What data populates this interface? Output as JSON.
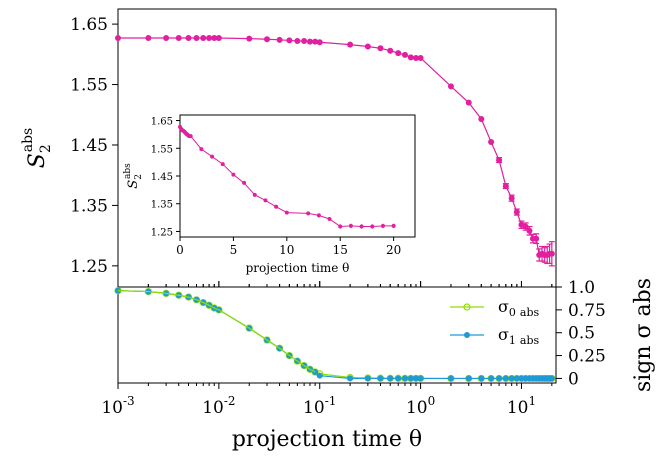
{
  "chart_data": [
    {
      "type": "line",
      "id": "main",
      "x_scale": "log",
      "xlim": [
        0.001,
        22
      ],
      "ylim": [
        1.215,
        1.675
      ],
      "y_ticks": [
        1.25,
        1.35,
        1.45,
        1.55,
        1.65
      ],
      "y_tick_labels": [
        "1.25",
        "1.35",
        "1.45",
        "1.55",
        "1.65"
      ],
      "ylabel": "S",
      "ylabel_sub": "2",
      "ylabel_sup": "abs",
      "color": "#e0209f",
      "series": [
        {
          "x": [
            0.001,
            0.002,
            0.003,
            0.004,
            0.005,
            0.006,
            0.007,
            0.008,
            0.009,
            0.01,
            0.02,
            0.03,
            0.04,
            0.05,
            0.06,
            0.07,
            0.08,
            0.09,
            0.1,
            0.2,
            0.3,
            0.4,
            0.5,
            0.6,
            0.7,
            0.8,
            0.9,
            1.0,
            2,
            3,
            4,
            5,
            6,
            7,
            8,
            9,
            10,
            11,
            12,
            13,
            14,
            15,
            16,
            17,
            18,
            19,
            20
          ],
          "y": [
            1.627,
            1.627,
            1.627,
            1.627,
            1.627,
            1.627,
            1.627,
            1.627,
            1.627,
            1.627,
            1.626,
            1.625,
            1.624,
            1.623,
            1.622,
            1.622,
            1.621,
            1.621,
            1.62,
            1.616,
            1.613,
            1.61,
            1.606,
            1.602,
            1.599,
            1.595,
            1.594,
            1.594,
            1.547,
            1.52,
            1.493,
            1.455,
            1.425,
            1.382,
            1.362,
            1.339,
            1.318,
            1.315,
            1.308,
            1.295,
            1.295,
            1.268,
            1.27,
            1.268,
            1.268,
            1.27,
            1.27
          ],
          "err": [
            0.001,
            0.001,
            0.001,
            0.001,
            0.001,
            0.001,
            0.001,
            0.001,
            0.001,
            0.001,
            0.001,
            0.001,
            0.001,
            0.001,
            0.001,
            0.001,
            0.001,
            0.001,
            0.001,
            0.001,
            0.001,
            0.001,
            0.001,
            0.001,
            0.001,
            0.001,
            0.001,
            0.001,
            0.002,
            0.002,
            0.003,
            0.003,
            0.004,
            0.004,
            0.005,
            0.005,
            0.006,
            0.006,
            0.007,
            0.007,
            0.008,
            0.01,
            0.012,
            0.012,
            0.014,
            0.016,
            0.02
          ]
        }
      ]
    },
    {
      "type": "line",
      "id": "inset",
      "xlim": [
        0,
        22
      ],
      "ylim": [
        1.23,
        1.67
      ],
      "x_ticks": [
        0,
        5,
        10,
        15,
        20
      ],
      "x_tick_labels": [
        "0",
        "5",
        "10",
        "15",
        "20"
      ],
      "y_ticks": [
        1.25,
        1.35,
        1.45,
        1.55,
        1.65
      ],
      "y_tick_labels": [
        "1.25",
        "1.35",
        "1.45",
        "1.55",
        "1.65"
      ],
      "xlabel": "projection time θ",
      "ylabel": "S",
      "ylabel_sub": "2",
      "ylabel_sup": "abs",
      "color": "#e0209f",
      "series": [
        {
          "x": [
            0,
            0.1,
            0.2,
            0.3,
            0.4,
            0.5,
            0.6,
            0.7,
            0.8,
            0.9,
            1,
            2,
            3,
            4,
            5,
            6,
            7,
            8,
            9,
            10,
            12,
            13,
            14,
            15,
            16,
            17,
            18,
            19,
            20
          ],
          "y": [
            1.627,
            1.62,
            1.616,
            1.613,
            1.61,
            1.606,
            1.602,
            1.599,
            1.595,
            1.594,
            1.594,
            1.547,
            1.52,
            1.493,
            1.455,
            1.425,
            1.382,
            1.362,
            1.339,
            1.318,
            1.315,
            1.308,
            1.295,
            1.268,
            1.27,
            1.268,
            1.268,
            1.27,
            1.27
          ],
          "err": [
            0.001,
            0.001,
            0.001,
            0.001,
            0.001,
            0.001,
            0.001,
            0.001,
            0.001,
            0.001,
            0.001,
            0.002,
            0.002,
            0.003,
            0.003,
            0.004,
            0.004,
            0.005,
            0.005,
            0.006,
            0.006,
            0.007,
            0.007,
            0.008,
            0.008,
            0.008,
            0.008,
            0.008,
            0.008
          ]
        }
      ]
    },
    {
      "type": "line",
      "id": "sign",
      "x_scale": "log",
      "xlim": [
        0.001,
        22
      ],
      "x_ticks": [
        0.001,
        0.01,
        0.1,
        1,
        10
      ],
      "x_tick_labels": [
        "10^-3",
        "10^-2",
        "10^-1",
        "10^0",
        "10^1"
      ],
      "ylim": [
        -0.05,
        1.0
      ],
      "y_ticks": [
        0,
        0.25,
        0.5,
        0.75,
        1.0
      ],
      "y_tick_labels": [
        "0",
        "0.25",
        "0.5",
        "0.75",
        "1.0"
      ],
      "xlabel": "projection time θ",
      "ylabel": "sign σ abs",
      "legend_position": "right",
      "series": [
        {
          "name": "σ",
          "name_sub": "0",
          "name_sub2": "abs",
          "color": "#8ee000",
          "x": [
            0.001,
            0.002,
            0.003,
            0.004,
            0.005,
            0.006,
            0.007,
            0.008,
            0.009,
            0.01,
            0.02,
            0.03,
            0.04,
            0.05,
            0.06,
            0.07,
            0.08,
            0.09,
            0.1,
            0.2,
            0.3,
            0.4,
            0.5,
            0.6,
            0.7,
            0.8,
            0.9,
            1.0,
            2,
            3,
            4,
            5,
            6,
            7,
            8,
            9,
            10,
            11,
            12,
            13,
            14,
            15,
            16,
            17,
            18,
            19,
            20
          ],
          "y": [
            0.96,
            0.95,
            0.93,
            0.91,
            0.89,
            0.86,
            0.83,
            0.8,
            0.77,
            0.75,
            0.55,
            0.42,
            0.33,
            0.25,
            0.19,
            0.14,
            0.1,
            0.07,
            0.05,
            0.01,
            0.005,
            0.003,
            0.002,
            0.002,
            0.001,
            0.001,
            0.001,
            0.001,
            0.0,
            0.0,
            0.0,
            0.0,
            0.0,
            0.0,
            0.0,
            0.0,
            0.0,
            0.0,
            0.0,
            0.0,
            0.0,
            0.0,
            0.0,
            0.0,
            0.0,
            0.0,
            0.0
          ]
        },
        {
          "name": "σ",
          "name_sub": "1",
          "name_sub2": "abs",
          "color": "#1e9ad6",
          "x": [
            0.001,
            0.002,
            0.003,
            0.004,
            0.005,
            0.006,
            0.007,
            0.008,
            0.009,
            0.01,
            0.02,
            0.03,
            0.04,
            0.05,
            0.06,
            0.07,
            0.08,
            0.09,
            0.1,
            0.2,
            0.3,
            0.4,
            0.5,
            0.6,
            0.7,
            0.8,
            0.9,
            1.0,
            2,
            3,
            4,
            5,
            6,
            7,
            8,
            9,
            10,
            11,
            12,
            13,
            14,
            15,
            16,
            17,
            18,
            19,
            20
          ],
          "y": [
            0.96,
            0.95,
            0.93,
            0.91,
            0.89,
            0.86,
            0.83,
            0.8,
            0.77,
            0.75,
            0.55,
            0.42,
            0.33,
            0.25,
            0.19,
            0.14,
            0.1,
            0.07,
            0.03,
            0.0,
            0.0,
            0.0,
            0.0,
            0.0,
            0.0,
            0.0,
            0.0,
            0.0,
            0.0,
            0.0,
            0.0,
            0.0,
            0.0,
            0.0,
            0.0,
            0.0,
            0.0,
            0.0,
            0.0,
            0.0,
            0.0,
            0.0,
            0.0,
            0.0,
            0.0,
            0.0,
            0.0
          ]
        }
      ]
    }
  ]
}
